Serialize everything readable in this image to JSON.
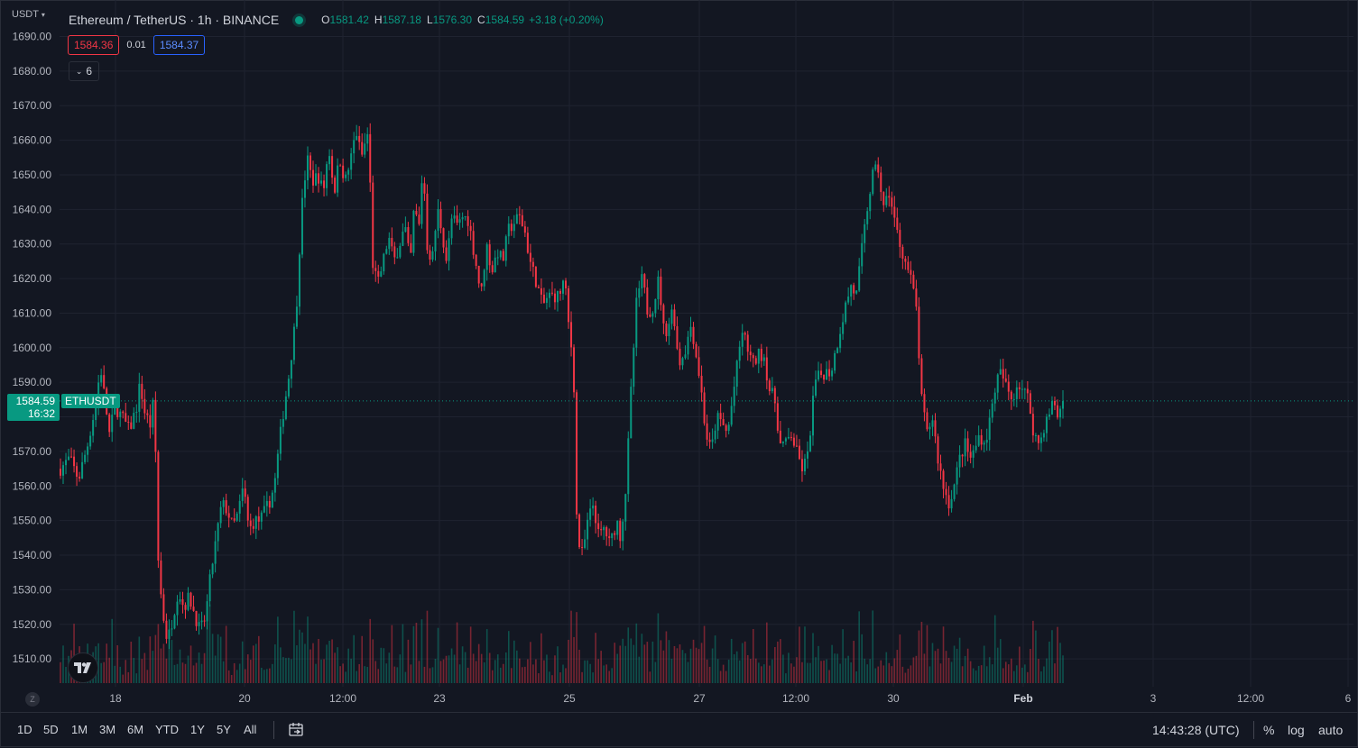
{
  "header": {
    "currency": "USDT",
    "symbol_title": "Ethereum / TetherUS · 1h · BINANCE",
    "ohlc": {
      "o": "1581.42",
      "h": "1587.18",
      "l": "1576.30",
      "c": "1584.59",
      "change": "+3.18 (+0.20%)"
    },
    "ohlc_keys": {
      "o": "O",
      "h": "H",
      "l": "L",
      "c": "C"
    },
    "sell_price": "1584.36",
    "spread": "0.01",
    "buy_price": "1584.37",
    "indicators_count": "6"
  },
  "price_tag": {
    "price": "1584.59",
    "countdown": "16:32",
    "symbol": "ETHUSDT"
  },
  "toolbar": {
    "ranges": [
      "1D",
      "5D",
      "1M",
      "3M",
      "6M",
      "YTD",
      "1Y",
      "5Y",
      "All"
    ],
    "clock": "14:43:28 (UTC)",
    "percent_label": "%",
    "log_label": "log",
    "auto_label": "auto",
    "zoom_reset": "Z"
  },
  "colors": {
    "up": "#089981",
    "down": "#f23645",
    "background": "#131722",
    "grid": "#1f2330",
    "accent": "#2962ff"
  },
  "chart_data": {
    "type": "candlestick",
    "title": "Ethereum / TetherUS · 1h · BINANCE",
    "symbol": "ETHUSDT",
    "interval": "1h",
    "y_axis": {
      "unit": "USDT",
      "range": [
        1505,
        1693
      ],
      "ticks": [
        "1690.00",
        "1680.00",
        "1670.00",
        "1660.00",
        "1650.00",
        "1640.00",
        "1630.00",
        "1620.00",
        "1610.00",
        "1600.00",
        "1590.00",
        "1580.00",
        "1570.00",
        "1560.00",
        "1550.00",
        "1540.00",
        "1530.00",
        "1520.00",
        "1510.00"
      ]
    },
    "x_axis": {
      "ticks": [
        {
          "label": "18",
          "bold": false
        },
        {
          "label": "20",
          "bold": false
        },
        {
          "label": "12:00",
          "bold": false
        },
        {
          "label": "23",
          "bold": false
        },
        {
          "label": "25",
          "bold": false
        },
        {
          "label": "27",
          "bold": false
        },
        {
          "label": "12:00",
          "bold": false
        },
        {
          "label": "30",
          "bold": false
        },
        {
          "label": "Feb",
          "bold": true
        },
        {
          "label": "3",
          "bold": false
        },
        {
          "label": "12:00",
          "bold": false
        },
        {
          "label": "6",
          "bold": false
        }
      ]
    },
    "price_path": [
      [
        0,
        1565
      ],
      [
        10,
        1568
      ],
      [
        20,
        1562
      ],
      [
        30,
        1572
      ],
      [
        40,
        1585
      ],
      [
        44,
        1595
      ],
      [
        54,
        1575
      ],
      [
        60,
        1583
      ],
      [
        68,
        1580
      ],
      [
        76,
        1576
      ],
      [
        84,
        1583
      ],
      [
        88,
        1590
      ],
      [
        92,
        1582
      ],
      [
        100,
        1577
      ],
      [
        104,
        1590
      ],
      [
        106,
        1545
      ],
      [
        112,
        1525
      ],
      [
        118,
        1515
      ],
      [
        124,
        1522
      ],
      [
        130,
        1530
      ],
      [
        136,
        1525
      ],
      [
        142,
        1528
      ],
      [
        148,
        1523
      ],
      [
        154,
        1518
      ],
      [
        160,
        1522
      ],
      [
        166,
        1535
      ],
      [
        172,
        1545
      ],
      [
        178,
        1555
      ],
      [
        184,
        1553
      ],
      [
        190,
        1548
      ],
      [
        196,
        1552
      ],
      [
        202,
        1560
      ],
      [
        208,
        1547
      ],
      [
        214,
        1550
      ],
      [
        220,
        1550
      ],
      [
        230,
        1555
      ],
      [
        236,
        1560
      ],
      [
        244,
        1578
      ],
      [
        252,
        1592
      ],
      [
        260,
        1610
      ],
      [
        266,
        1640
      ],
      [
        272,
        1655
      ],
      [
        278,
        1648
      ],
      [
        284,
        1650
      ],
      [
        290,
        1645
      ],
      [
        296,
        1658
      ],
      [
        302,
        1645
      ],
      [
        308,
        1655
      ],
      [
        314,
        1648
      ],
      [
        320,
        1654
      ],
      [
        326,
        1663
      ],
      [
        332,
        1655
      ],
      [
        340,
        1663
      ],
      [
        344,
        1625
      ],
      [
        350,
        1618
      ],
      [
        356,
        1625
      ],
      [
        362,
        1632
      ],
      [
        368,
        1625
      ],
      [
        374,
        1630
      ],
      [
        380,
        1635
      ],
      [
        386,
        1624
      ],
      [
        390,
        1640
      ],
      [
        396,
        1635
      ],
      [
        400,
        1655
      ],
      [
        404,
        1630
      ],
      [
        410,
        1625
      ],
      [
        416,
        1640
      ],
      [
        420,
        1635
      ],
      [
        426,
        1625
      ],
      [
        432,
        1638
      ],
      [
        438,
        1635
      ],
      [
        444,
        1638
      ],
      [
        450,
        1637
      ],
      [
        458,
        1625
      ],
      [
        464,
        1615
      ],
      [
        470,
        1630
      ],
      [
        476,
        1622
      ],
      [
        482,
        1628
      ],
      [
        488,
        1625
      ],
      [
        494,
        1634
      ],
      [
        500,
        1636
      ],
      [
        506,
        1638
      ],
      [
        512,
        1634
      ],
      [
        518,
        1625
      ],
      [
        524,
        1620
      ],
      [
        532,
        1612
      ],
      [
        538,
        1615
      ],
      [
        544,
        1615
      ],
      [
        550,
        1615
      ],
      [
        556,
        1620
      ],
      [
        560,
        1608
      ],
      [
        566,
        1595
      ],
      [
        570,
        1545
      ],
      [
        576,
        1540
      ],
      [
        582,
        1550
      ],
      [
        588,
        1555
      ],
      [
        594,
        1545
      ],
      [
        600,
        1548
      ],
      [
        606,
        1543
      ],
      [
        614,
        1550
      ],
      [
        618,
        1545
      ],
      [
        624,
        1560
      ],
      [
        630,
        1590
      ],
      [
        636,
        1615
      ],
      [
        642,
        1620
      ],
      [
        648,
        1610
      ],
      [
        654,
        1612
      ],
      [
        660,
        1620
      ],
      [
        666,
        1604
      ],
      [
        670,
        1606
      ],
      [
        676,
        1612
      ],
      [
        682,
        1595
      ],
      [
        690,
        1600
      ],
      [
        696,
        1607
      ],
      [
        700,
        1600
      ],
      [
        706,
        1590
      ],
      [
        712,
        1575
      ],
      [
        718,
        1570
      ],
      [
        724,
        1580
      ],
      [
        730,
        1578
      ],
      [
        736,
        1575
      ],
      [
        744,
        1590
      ],
      [
        752,
        1605
      ],
      [
        758,
        1600
      ],
      [
        764,
        1595
      ],
      [
        770,
        1598
      ],
      [
        776,
        1598
      ],
      [
        782,
        1588
      ],
      [
        788,
        1585
      ],
      [
        794,
        1572
      ],
      [
        800,
        1572
      ],
      [
        806,
        1575
      ],
      [
        812,
        1570
      ],
      [
        818,
        1565
      ],
      [
        824,
        1568
      ],
      [
        828,
        1578
      ],
      [
        832,
        1590
      ],
      [
        838,
        1592
      ],
      [
        844,
        1593
      ],
      [
        850,
        1593
      ],
      [
        856,
        1600
      ],
      [
        860,
        1605
      ],
      [
        866,
        1612
      ],
      [
        872,
        1618
      ],
      [
        878,
        1615
      ],
      [
        884,
        1628
      ],
      [
        890,
        1640
      ],
      [
        896,
        1650
      ],
      [
        902,
        1652
      ],
      [
        908,
        1640
      ],
      [
        914,
        1645
      ],
      [
        920,
        1637
      ],
      [
        926,
        1630
      ],
      [
        932,
        1625
      ],
      [
        938,
        1620
      ],
      [
        944,
        1612
      ],
      [
        950,
        1585
      ],
      [
        956,
        1575
      ],
      [
        962,
        1580
      ],
      [
        968,
        1568
      ],
      [
        974,
        1560
      ],
      [
        980,
        1555
      ],
      [
        986,
        1560
      ],
      [
        992,
        1568
      ],
      [
        998,
        1572
      ],
      [
        1004,
        1568
      ],
      [
        1008,
        1570
      ],
      [
        1014,
        1575
      ],
      [
        1020,
        1572
      ],
      [
        1026,
        1580
      ],
      [
        1032,
        1590
      ],
      [
        1038,
        1593
      ],
      [
        1044,
        1588
      ],
      [
        1050,
        1585
      ],
      [
        1056,
        1590
      ],
      [
        1062,
        1588
      ],
      [
        1068,
        1585
      ],
      [
        1074,
        1575
      ],
      [
        1080,
        1572
      ],
      [
        1086,
        1578
      ],
      [
        1090,
        1580
      ],
      [
        1096,
        1585
      ],
      [
        1100,
        1580
      ],
      [
        1106,
        1585
      ]
    ],
    "last_price": 1584.59
  }
}
